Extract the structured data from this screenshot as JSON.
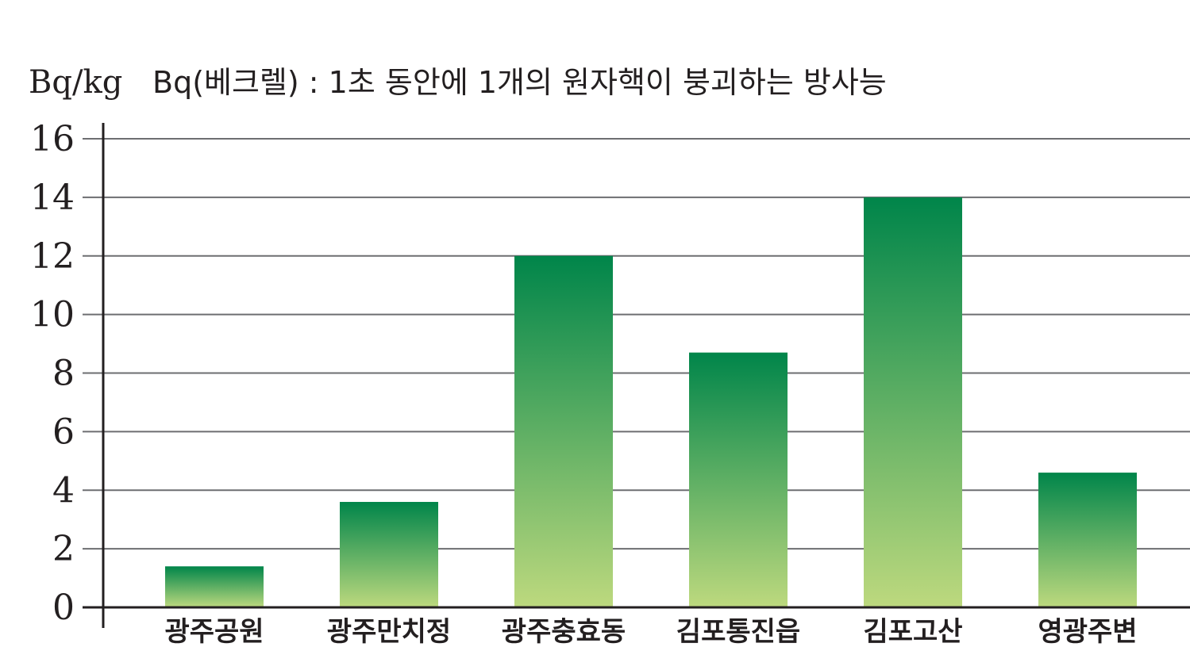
{
  "chart_data": {
    "type": "bar",
    "unit_label": "Bq/kg",
    "note": "Bq(베크렐) : 1초 동안에 1개의 원자핵이 붕괴하는 방사능",
    "categories": [
      "광주공원",
      "광주만치정",
      "광주충효동",
      "김포통진읍",
      "김포고산",
      "영광주변"
    ],
    "values": [
      1.4,
      3.6,
      12.0,
      8.7,
      14.0,
      4.6
    ],
    "ylim": [
      0,
      16
    ],
    "yticks": [
      0,
      2,
      4,
      6,
      8,
      10,
      12,
      14,
      16
    ],
    "ytick_labels": [
      "0",
      "2",
      "4",
      "6",
      "8",
      "10",
      "12",
      "14",
      "16"
    ],
    "grid": true,
    "colors": {
      "bar_top": "#00854a",
      "bar_bottom": "#bdd97e",
      "grid": "#6d6e71",
      "axis": "#231f20"
    }
  }
}
